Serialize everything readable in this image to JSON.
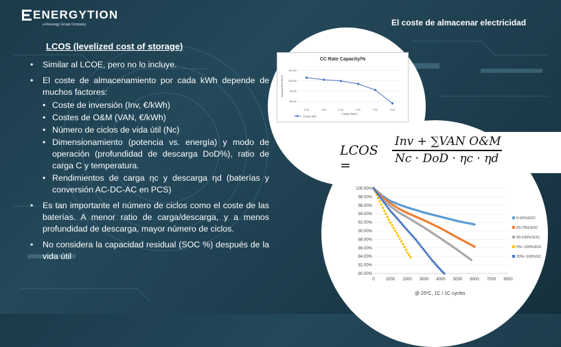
{
  "logo": {
    "name": "ENERGYTION",
    "subtitle": "a Renewgy Group Company"
  },
  "slide_title": "El coste de almacenar electricidad",
  "heading": {
    "label": "LCOS (levelized cost of storage)"
  },
  "bullets": [
    "Similar al LCOE, pero no lo incluye.",
    "El coste de almacenamiento por cada kWh depende de muchos factores:",
    "Es tan importante el número de ciclos como el coste de las baterías. A menor ratio de carga/descarga, y a menos profundidad de descarga, mayor número de ciclos.",
    "No considera la capacidad residual (SOC %) después de la vida útil"
  ],
  "sub_bullets": [
    "Coste de inversión (Inv, €/kWh)",
    "Costes de O&M (VAN, €/kWh)",
    "Número de ciclos de vida útil (Nc)",
    "Dimensionamiento (potencia vs. energía) y modo de operación (profundidad de descarga DoD%), ratio de carga C y temperatura.",
    "Rendimientos de carga ηc y descarga ηd (baterías y conversión AC-DC-AC en PCS)"
  ],
  "formula": {
    "lhs": "LCOS =",
    "numerator": "Inv + ∑VAN O&M",
    "denominator": "Nc · DoD · ηc · ηd"
  },
  "caption": "@ 25ºC, 1C / 1C cycles",
  "colors": {
    "background": "#1f4252",
    "accent_blue": "#4472c4",
    "series": [
      "#5b9bd5",
      "#ed7d31",
      "#a5a5a5",
      "#ffc000",
      "#4472c4"
    ]
  },
  "chart_data": [
    {
      "type": "line",
      "title": "CC Rate Capacity/%",
      "xlabel": "Charge Rate/C",
      "ylabel": "Capacity Retention/%",
      "categories": [
        "0.2C",
        "0.5C",
        "1.0C",
        "1.5C",
        "2.0C",
        "3.0C"
      ],
      "series": [
        {
          "name": "Charge Rate",
          "values": [
            103.0,
            101.0,
            99.8,
            97.0,
            91.0,
            78.0
          ]
        }
      ],
      "yticks": [
        "80.0%",
        "90.0%",
        "100.0%",
        "110.0%"
      ],
      "ylim": [
        75,
        115
      ],
      "legend": "bottom-left"
    },
    {
      "type": "scatter",
      "xlabel": "",
      "ylabel": "",
      "xlim": [
        0,
        8000
      ],
      "ylim": [
        80,
        100
      ],
      "xticks": [
        "0",
        "1000",
        "2000",
        "3000",
        "4000",
        "5000",
        "6000",
        "7000",
        "8000"
      ],
      "yticks": [
        "80.00%",
        "82.00%",
        "84.00%",
        "86.00%",
        "88.00%",
        "90.00%",
        "92.00%",
        "94.00%",
        "96.00%",
        "98.00%",
        "100.00%"
      ],
      "legend": "right",
      "series": [
        {
          "name": "0-50%SOC",
          "x_end": 6000,
          "points": [
            [
              0,
              100
            ],
            [
              500,
              98.3
            ],
            [
              1000,
              97
            ],
            [
              1500,
              96.2
            ],
            [
              2000,
              95.5
            ],
            [
              3000,
              94.3
            ],
            [
              4000,
              93.3
            ],
            [
              5000,
              92.3
            ],
            [
              6000,
              91.5
            ]
          ]
        },
        {
          "name": "25-75%SOC",
          "x_end": 6000,
          "points": [
            [
              0,
              100
            ],
            [
              500,
              98
            ],
            [
              1000,
              96.5
            ],
            [
              1500,
              95.2
            ],
            [
              2000,
              94.2
            ],
            [
              3000,
              92.5
            ],
            [
              4000,
              90.6
            ],
            [
              5000,
              88.4
            ],
            [
              6000,
              86.3
            ]
          ]
        },
        {
          "name": "50-100%SOC",
          "x_end": 5800,
          "points": [
            [
              0,
              100
            ],
            [
              500,
              97.5
            ],
            [
              1000,
              95.8
            ],
            [
              1500,
              94.3
            ],
            [
              2000,
              93.2
            ],
            [
              3000,
              90.8
            ],
            [
              4000,
              88.2
            ],
            [
              5000,
              85.5
            ],
            [
              5800,
              83.2
            ]
          ]
        },
        {
          "name": "0%~100%SOC",
          "x_end": 2200,
          "points": [
            [
              0,
              100
            ],
            [
              300,
              97.5
            ],
            [
              600,
              95
            ],
            [
              900,
              92.7
            ],
            [
              1200,
              90.6
            ],
            [
              1500,
              88.6
            ],
            [
              1800,
              86.5
            ],
            [
              2000,
              85
            ],
            [
              2200,
              83.8
            ]
          ]
        },
        {
          "name": "20%~100%SOC",
          "x_end": 4200,
          "points": [
            [
              0,
              100
            ],
            [
              500,
              97.3
            ],
            [
              1000,
              94.7
            ],
            [
              1500,
              92.5
            ],
            [
              2000,
              90.2
            ],
            [
              2500,
              88
            ],
            [
              3000,
              85.5
            ],
            [
              3500,
              83
            ],
            [
              4000,
              80.8
            ],
            [
              4200,
              80
            ]
          ]
        }
      ]
    }
  ]
}
